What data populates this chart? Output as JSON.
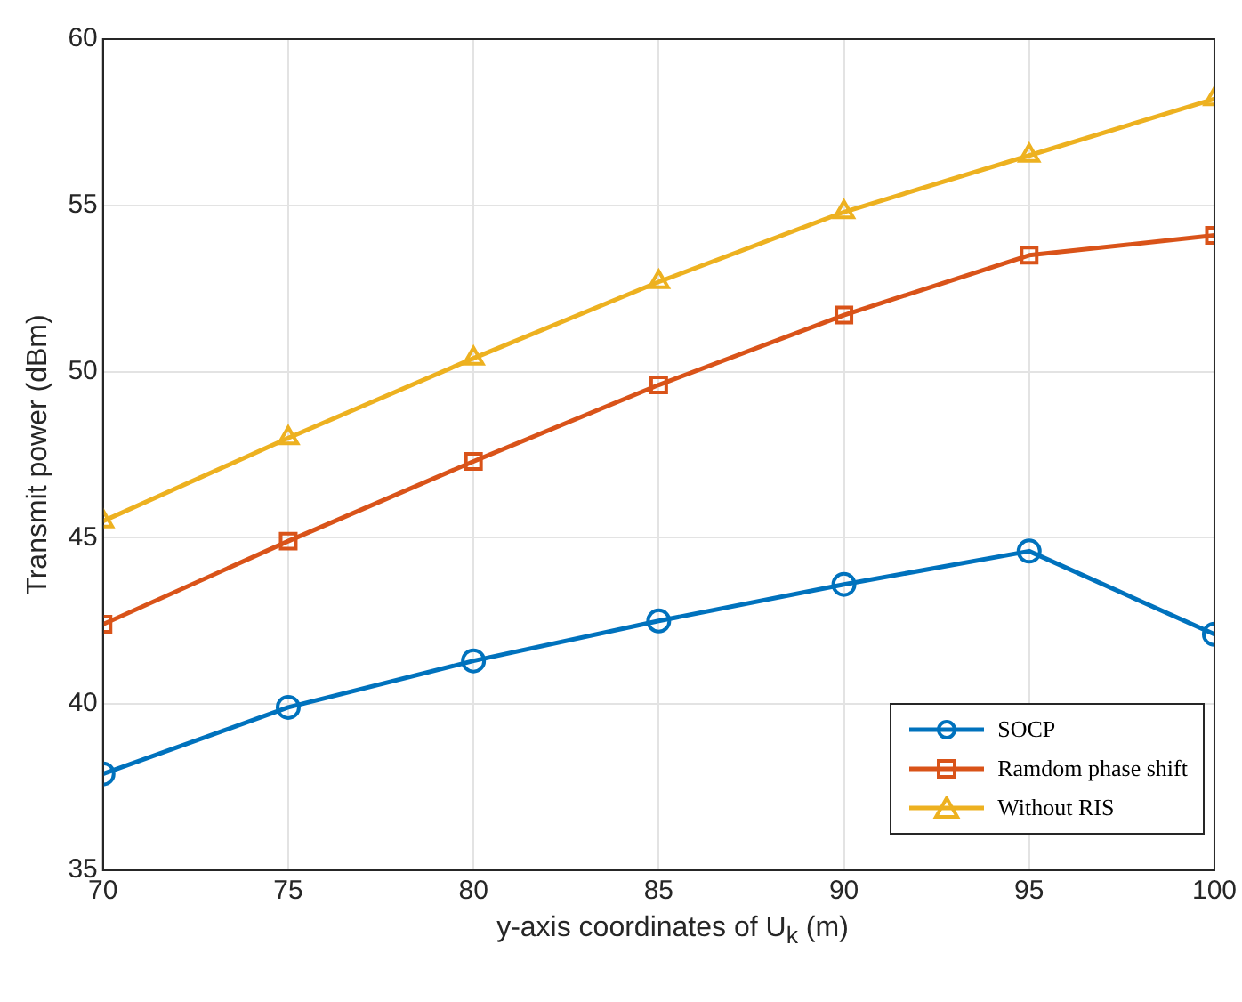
{
  "chart_data": {
    "type": "line",
    "xlabel": "y-axis coordinates of U$_{k}$ (m)",
    "ylabel": "Transmit power (dBm)",
    "x": [
      70,
      75,
      80,
      85,
      90,
      95,
      100
    ],
    "series": [
      {
        "name": "SOCP",
        "color": "#0072bd",
        "marker": "circle",
        "values": [
          37.9,
          39.9,
          41.3,
          42.5,
          43.6,
          44.6,
          42.1
        ]
      },
      {
        "name": "Ramdom phase shift",
        "color": "#d95319",
        "marker": "square",
        "values": [
          42.4,
          44.9,
          47.3,
          49.6,
          51.7,
          53.5,
          54.1
        ]
      },
      {
        "name": "Without RIS",
        "color": "#edb120",
        "marker": "triangle",
        "values": [
          45.5,
          48.0,
          50.4,
          52.7,
          54.8,
          56.5,
          58.2
        ]
      }
    ],
    "xlim": [
      70,
      100
    ],
    "xticks": [
      70,
      75,
      80,
      85,
      90,
      95,
      100
    ],
    "ylim": [
      35,
      60
    ],
    "yticks": [
      35,
      40,
      45,
      50,
      55,
      60
    ],
    "grid": true,
    "legend": "bottom right",
    "line_style": "solid"
  }
}
